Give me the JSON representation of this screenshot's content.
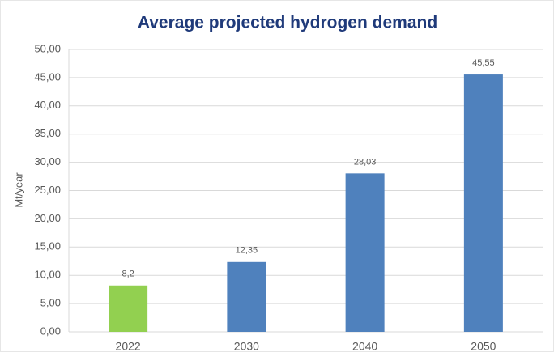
{
  "chart_data": {
    "type": "bar",
    "title": "Average projected hydrogen demand",
    "y_label": "Mt/year",
    "categories": [
      "2022",
      "2030",
      "2040",
      "2050"
    ],
    "values": [
      8.2,
      12.35,
      28.03,
      45.55
    ],
    "value_labels": [
      "8,2",
      "12,35",
      "28,03",
      "45,55"
    ],
    "colors": [
      "#92d050",
      "#4f81bd",
      "#4f81bd",
      "#4f81bd"
    ],
    "ylim": [
      0,
      50
    ],
    "yticks": [
      {
        "value": 0,
        "label": "0,00"
      },
      {
        "value": 5,
        "label": "5,00"
      },
      {
        "value": 10,
        "label": "10,00"
      },
      {
        "value": 15,
        "label": "15,00"
      },
      {
        "value": 20,
        "label": "20,00"
      },
      {
        "value": 25,
        "label": "25,00"
      },
      {
        "value": 30,
        "label": "30,00"
      },
      {
        "value": 35,
        "label": "35,00"
      },
      {
        "value": 40,
        "label": "40,00"
      },
      {
        "value": 45,
        "label": "45,00"
      },
      {
        "value": 50,
        "label": "50,00"
      }
    ],
    "grid": true
  }
}
